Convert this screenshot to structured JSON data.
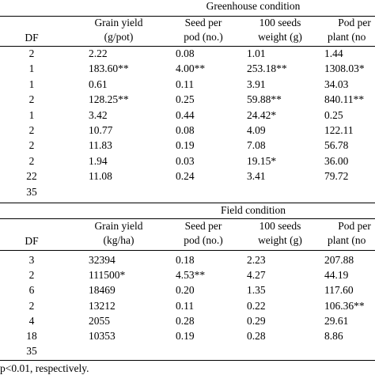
{
  "greenhouse": {
    "title": "Greenhouse condition",
    "headers": {
      "df": "DF",
      "col1": [
        "Grain yield",
        "(g/pot)"
      ],
      "col2": [
        "Seed per",
        "pod (no.)"
      ],
      "col3": [
        "100 seeds",
        "weight (g)"
      ],
      "col4": [
        "Pod per",
        "plant (no"
      ]
    },
    "rows": [
      {
        "df": "2",
        "c1": "2.22",
        "c2": "0.08",
        "c3": "1.01",
        "c4": "1.44"
      },
      {
        "df": "1",
        "c1": "183.60**",
        "c2": "4.00**",
        "c3": "253.18**",
        "c4": "1308.03*"
      },
      {
        "df": "1",
        "c1": "0.61",
        "c2": "0.11",
        "c3": "3.91",
        "c4": "34.03"
      },
      {
        "df": "2",
        "c1": "128.25**",
        "c2": "0.25",
        "c3": "59.88**",
        "c4": "840.11**"
      },
      {
        "df": "1",
        "c1": "3.42",
        "c2": "0.44",
        "c3": "24.42*",
        "c4": "0.25"
      },
      {
        "df": "2",
        "c1": "10.77",
        "c2": "0.08",
        "c3": "4.09",
        "c4": "122.11"
      },
      {
        "df": "2",
        "c1": "11.83",
        "c2": "0.19",
        "c3": "7.08",
        "c4": "56.78"
      },
      {
        "df": "2",
        "c1": "1.94",
        "c2": "0.03",
        "c3": "19.15*",
        "c4": "36.00"
      },
      {
        "df": "22",
        "c1": "11.08",
        "c2": "0.24",
        "c3": "3.41",
        "c4": "79.72"
      },
      {
        "df": "35",
        "c1": "",
        "c2": "",
        "c3": "",
        "c4": ""
      }
    ]
  },
  "field": {
    "title": "Field condition",
    "headers": {
      "df": "DF",
      "col1": [
        "Grain yield",
        "(kg/ha)"
      ],
      "col2": [
        "Seed per",
        "pod (no.)"
      ],
      "col3": [
        "100 seeds",
        "weight (g)"
      ],
      "col4": [
        "Pod per",
        "plant (no"
      ]
    },
    "rows": [
      {
        "df": "3",
        "c1": "32394",
        "c2": "0.18",
        "c3": "2.23",
        "c4": "207.88"
      },
      {
        "df": "2",
        "c1": "111500*",
        "c2": "4.53**",
        "c3": "4.27",
        "c4": "44.19"
      },
      {
        "df": "6",
        "c1": "18469",
        "c2": "0.20",
        "c3": "1.35",
        "c4": "117.60"
      },
      {
        "df": "2",
        "c1": "13212",
        "c2": "0.11",
        "c3": "0.22",
        "c4": "106.36**"
      },
      {
        "df": "4",
        "c1": "2055",
        "c2": "0.28",
        "c3": "0.29",
        "c4": "29.61"
      },
      {
        "df": "18",
        "c1": "10353",
        "c2": "0.19",
        "c3": "0.28",
        "c4": "8.86"
      },
      {
        "df": "35",
        "c1": "",
        "c2": "",
        "c3": "",
        "c4": ""
      }
    ]
  },
  "footnote": "p<0.01, respectively."
}
